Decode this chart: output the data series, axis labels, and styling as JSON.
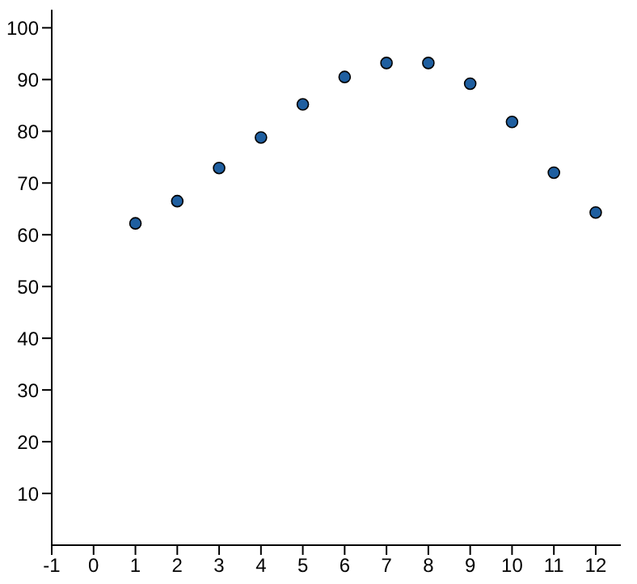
{
  "chart_data": {
    "type": "scatter",
    "x": [
      1,
      2,
      3,
      4,
      5,
      6,
      7,
      8,
      9,
      10,
      11,
      12
    ],
    "values": [
      62.2,
      66.5,
      72.9,
      78.8,
      85.2,
      90.5,
      93.2,
      93.2,
      89.2,
      81.8,
      72,
      64.3
    ],
    "color": "#1f5fa0",
    "marker": "circle",
    "xlim": [
      -1,
      12.6
    ],
    "ylim": [
      0,
      103.5
    ],
    "xticks": [
      -1,
      0,
      1,
      2,
      3,
      4,
      5,
      6,
      7,
      8,
      9,
      10,
      11,
      12
    ],
    "yticks": [
      10,
      20,
      30,
      40,
      50,
      60,
      70,
      80,
      90,
      100
    ],
    "grid": false
  }
}
